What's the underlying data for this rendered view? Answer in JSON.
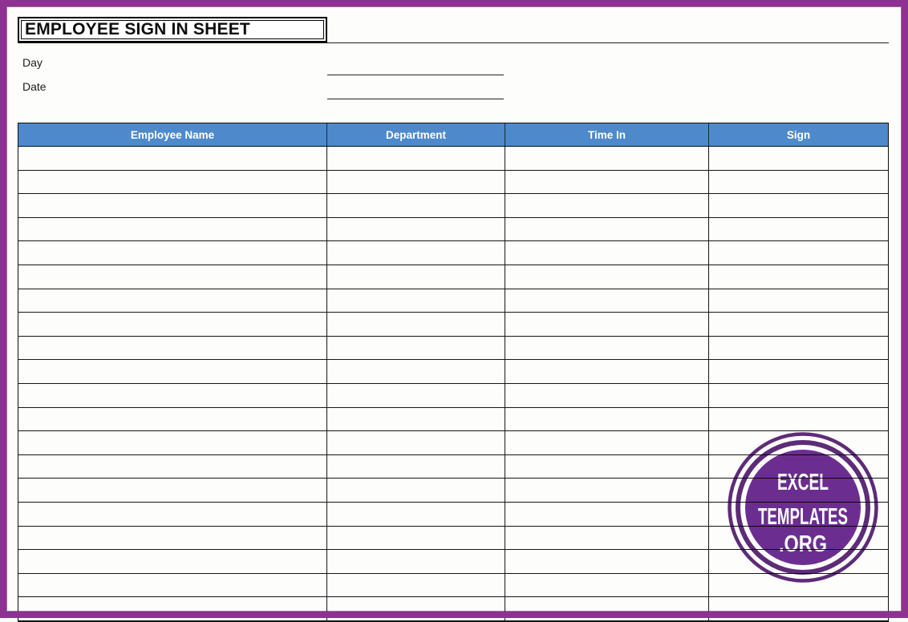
{
  "page": {
    "title": "EMPLOYEE SIGN IN SHEET"
  },
  "fields": {
    "day_label": "Day",
    "day_value": "",
    "date_label": "Date",
    "date_value": ""
  },
  "table": {
    "columns": [
      "Employee Name",
      "Department",
      "Time In",
      "Sign"
    ],
    "row_count": 20,
    "rows_empty": true
  },
  "watermark": {
    "line1": "EXCEL",
    "line2": "TEMPLATES",
    "line3": ".ORG"
  },
  "theme": {
    "header_bg": "#4E8ACB",
    "header_text": "#FFFFFF",
    "grid_color": "#161616",
    "frame_color": "#8E3190",
    "logo_fill": "#6C2E92",
    "logo_ring": "#5E2B78",
    "logo_text": "#FFFFFF"
  }
}
